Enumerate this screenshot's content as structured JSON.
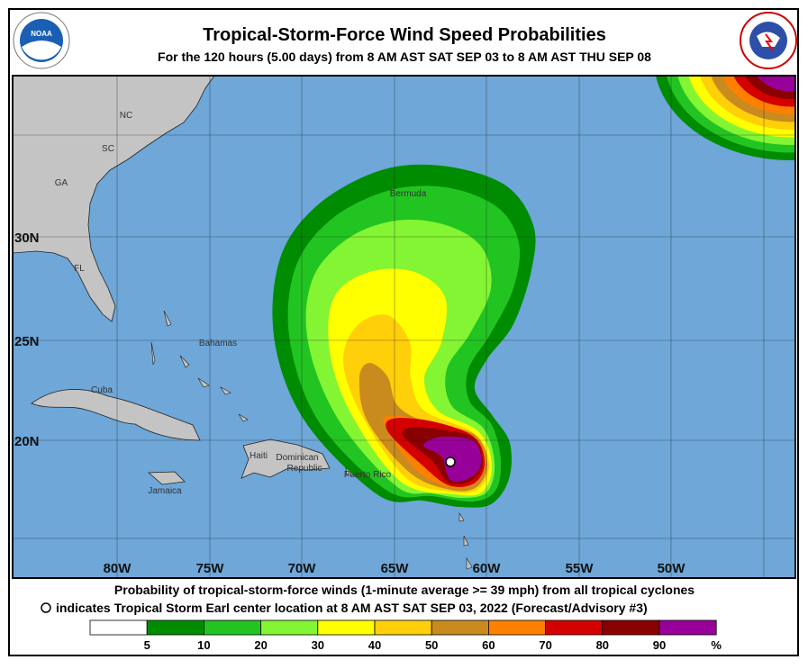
{
  "header": {
    "title": "Tropical-Storm-Force Wind Speed Probabilities",
    "subtitle": "For the 120 hours (5.00 days) from 8 AM AST SAT SEP 03 to 8 AM AST THU SEP 08"
  },
  "map": {
    "places": [
      "NC",
      "SC",
      "GA",
      "FL",
      "Bahamas",
      "Cuba",
      "Haiti",
      "Dominican",
      "Republic",
      "Jamaica",
      "Puerto Rico",
      "Bermuda"
    ],
    "latitude_labels": [
      "30N",
      "25N",
      "20N"
    ],
    "longitude_labels": [
      "80W",
      "75W",
      "70W",
      "65W",
      "60W",
      "55W",
      "50W"
    ]
  },
  "footer": {
    "line1": "Probability of tropical-storm-force winds (1-minute average >= 39 mph) from all tropical cyclones",
    "line2": "indicates Tropical Storm Earl center location at 8 AM AST SAT SEP 03, 2022 (Forecast/Advisory #3)"
  },
  "legend": {
    "labels": [
      5,
      10,
      20,
      30,
      40,
      50,
      60,
      70,
      80,
      90
    ],
    "unit": "%",
    "colors": [
      "#ffffff",
      "#008c00",
      "#22c422",
      "#84f532",
      "#ffff00",
      "#ffcf0a",
      "#c98a1e",
      "#ff8000",
      "#d40000",
      "#8a0000",
      "#98009a"
    ]
  }
}
